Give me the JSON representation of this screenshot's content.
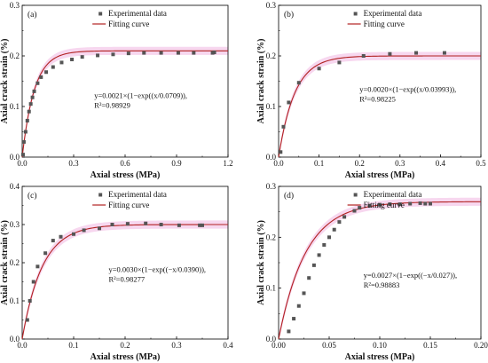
{
  "chart_data": [
    {
      "type": "scatter",
      "panel": "(a)",
      "xlabel": "Axial stress (MPa)",
      "ylabel": "Axial crack strain (%)",
      "xlim": [
        0,
        1.2
      ],
      "ylim": [
        0,
        0.3
      ],
      "xticks": [
        "0.0",
        "0.3",
        "0.6",
        "0.9",
        "1.2"
      ],
      "yticks": [
        "0.0",
        "0.1",
        "0.2",
        "0.3"
      ],
      "legend": [
        "Experimental data",
        "Fitting curve"
      ],
      "equation": "y=0.0021×(1−exp((x/0.0709)),",
      "r2": "R²=0.98929",
      "fit": {
        "a": 0.21,
        "b": 0.0709
      },
      "x": [
        0.005,
        0.01,
        0.02,
        0.03,
        0.04,
        0.05,
        0.06,
        0.07,
        0.09,
        0.11,
        0.14,
        0.18,
        0.23,
        0.29,
        0.35,
        0.44,
        0.53,
        0.62,
        0.71,
        0.81,
        0.91,
        1.0,
        1.11,
        1.12
      ],
      "y": [
        0.005,
        0.03,
        0.05,
        0.072,
        0.09,
        0.105,
        0.118,
        0.13,
        0.146,
        0.158,
        0.168,
        0.178,
        0.187,
        0.193,
        0.198,
        0.201,
        0.203,
        0.205,
        0.206,
        0.206,
        0.206,
        0.206,
        0.206,
        0.207
      ]
    },
    {
      "type": "scatter",
      "panel": "(b)",
      "xlabel": "Axial stress (MPa)",
      "ylabel": "Axial crack strain (%)",
      "xlim": [
        0,
        0.5
      ],
      "ylim": [
        0,
        0.3
      ],
      "xticks": [
        "0.0",
        "0.1",
        "0.2",
        "0.3",
        "0.4",
        "0.5"
      ],
      "yticks": [
        "0.0",
        "0.1",
        "0.2",
        "0.3"
      ],
      "legend": [
        "Experimental data",
        "Fitting curve"
      ],
      "equation": "y=0.0020×(1−exp((x/0.03993)),",
      "r2": "R²=0.98225",
      "fit": {
        "a": 0.2,
        "b": 0.03993
      },
      "x": [
        0.005,
        0.012,
        0.025,
        0.05,
        0.1,
        0.15,
        0.21,
        0.275,
        0.34,
        0.41
      ],
      "y": [
        0.01,
        0.06,
        0.108,
        0.147,
        0.175,
        0.187,
        0.2,
        0.204,
        0.206,
        0.206
      ]
    },
    {
      "type": "scatter",
      "panel": "(c)",
      "xlabel": "Axial stress (MPa)",
      "ylabel": "Axial crack strain (%)",
      "xlim": [
        0,
        0.4
      ],
      "ylim": [
        0,
        0.4
      ],
      "xticks": [
        "0.0",
        "0.1",
        "0.2",
        "0.3",
        "0.4"
      ],
      "yticks": [
        "0.0",
        "0.1",
        "0.2",
        "0.3",
        "0.4"
      ],
      "legend": [
        "Experimental data",
        "Fitting curve"
      ],
      "equation": "y=0.0030×(1−exp((−x/0.0390)),",
      "r2": "R²=0.98277",
      "fit": {
        "a": 0.3,
        "b": 0.039
      },
      "x": [
        0.01,
        0.015,
        0.022,
        0.03,
        0.045,
        0.06,
        0.075,
        0.1,
        0.12,
        0.15,
        0.175,
        0.205,
        0.24,
        0.27,
        0.305,
        0.345,
        0.35
      ],
      "y": [
        0.05,
        0.1,
        0.15,
        0.19,
        0.225,
        0.258,
        0.268,
        0.275,
        0.285,
        0.29,
        0.3,
        0.302,
        0.303,
        0.3,
        0.298,
        0.298,
        0.298
      ]
    },
    {
      "type": "scatter",
      "panel": "(d)",
      "xlabel": "Axial stress (MPa)",
      "ylabel": "Axial crack strain (%)",
      "xlim": [
        0,
        0.2
      ],
      "ylim": [
        0,
        0.3
      ],
      "xticks": [
        "0.00",
        "0.05",
        "0.10",
        "0.15",
        "0.20"
      ],
      "yticks": [
        "0.0",
        "0.1",
        "0.2",
        "0.3"
      ],
      "legend": [
        "Experimental data",
        "Fitting curve"
      ],
      "equation": "y=0.0027×(1−exp((−x/0.027)),",
      "r2": "R²=0.98883",
      "fit": {
        "a": 0.27,
        "b": 0.027
      },
      "x": [
        0.01,
        0.015,
        0.02,
        0.025,
        0.03,
        0.035,
        0.04,
        0.045,
        0.05,
        0.055,
        0.06,
        0.065,
        0.075,
        0.08,
        0.09,
        0.1,
        0.11,
        0.12,
        0.13,
        0.14,
        0.145,
        0.15
      ],
      "y": [
        0.015,
        0.04,
        0.065,
        0.09,
        0.12,
        0.145,
        0.165,
        0.185,
        0.2,
        0.215,
        0.23,
        0.24,
        0.252,
        0.258,
        0.262,
        0.264,
        0.265,
        0.265,
        0.266,
        0.267,
        0.266,
        0.266
      ]
    }
  ],
  "colors": {
    "points": "#555555",
    "curve": "#b22222",
    "band": "#f7d7ef"
  }
}
